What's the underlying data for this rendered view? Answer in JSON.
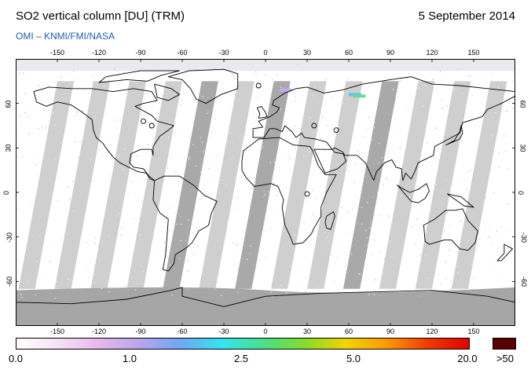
{
  "header": {
    "title": "SO2 vertical column [DU] (TRM)",
    "date": "5 September 2014",
    "subtitle": "OMI  –  KNMI/FMI/NASA"
  },
  "map": {
    "projection": "equirectangular",
    "lon_range": [
      -180,
      180
    ],
    "lat_range": [
      -90,
      90
    ],
    "lon_ticks": [
      -150,
      -120,
      -90,
      -60,
      -30,
      0,
      30,
      60,
      90,
      120,
      150
    ],
    "lon_tick_labels": [
      "-150",
      "-120",
      "-90",
      "-60",
      "-30",
      "0",
      "30",
      "60",
      "90",
      "120",
      "150"
    ],
    "lat_ticks": [
      60,
      30,
      0,
      -30,
      -60
    ],
    "lat_tick_labels": [
      "60",
      "30",
      "0",
      "-30",
      "-60"
    ],
    "colors": {
      "swath_gap": "#cfcfcf",
      "dark_band": "#a9a9a9",
      "polar_no_data": "#a6a6a6",
      "background": "#ffffff",
      "coastline": "#000000"
    }
  },
  "colorbar": {
    "labels": [
      "0.0",
      "1.0",
      "2.5",
      "5.0",
      "20.0",
      ">50"
    ],
    "stops": [
      "#ffffff",
      "#f6e3f4",
      "#e8b8ec",
      "#b7a6ee",
      "#6ea7f2",
      "#35e4f2",
      "#48e08a",
      "#86dc2a",
      "#f3d400",
      "#fb9a00",
      "#f03a00",
      "#e20000"
    ],
    "overflow_color": "#5a0000"
  }
}
